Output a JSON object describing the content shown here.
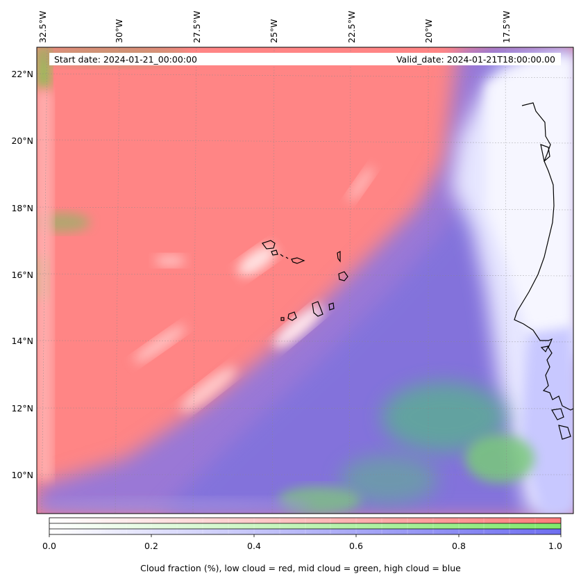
{
  "header": {
    "start_date": "Start date: 2024-01-21_00:00:00",
    "valid_date": "Valid_date: 2024-01-21T18:00:00.00"
  },
  "map": {
    "lon_labels": [
      "32.5°W",
      "30°W",
      "27.5°W",
      "25°W",
      "22.5°W",
      "20°W",
      "17.5°W"
    ],
    "lat_labels": [
      "22°N",
      "20°N",
      "18°N",
      "16°N",
      "14°N",
      "12°N",
      "10°N"
    ],
    "colors": {
      "low": "#ff7b7b",
      "mid": "#7fe96b",
      "high": "#6e6ef0"
    }
  },
  "colorbar": {
    "ticks": [
      "0.0",
      "0.2",
      "0.4",
      "0.6",
      "0.8",
      "1.0"
    ],
    "label": "Cloud fraction (%), low cloud = red, mid cloud = green, high cloud = blue",
    "low_color": "#ff7b7b",
    "mid_color": "#7fe96b",
    "high_color": "#6e6ef0"
  }
}
